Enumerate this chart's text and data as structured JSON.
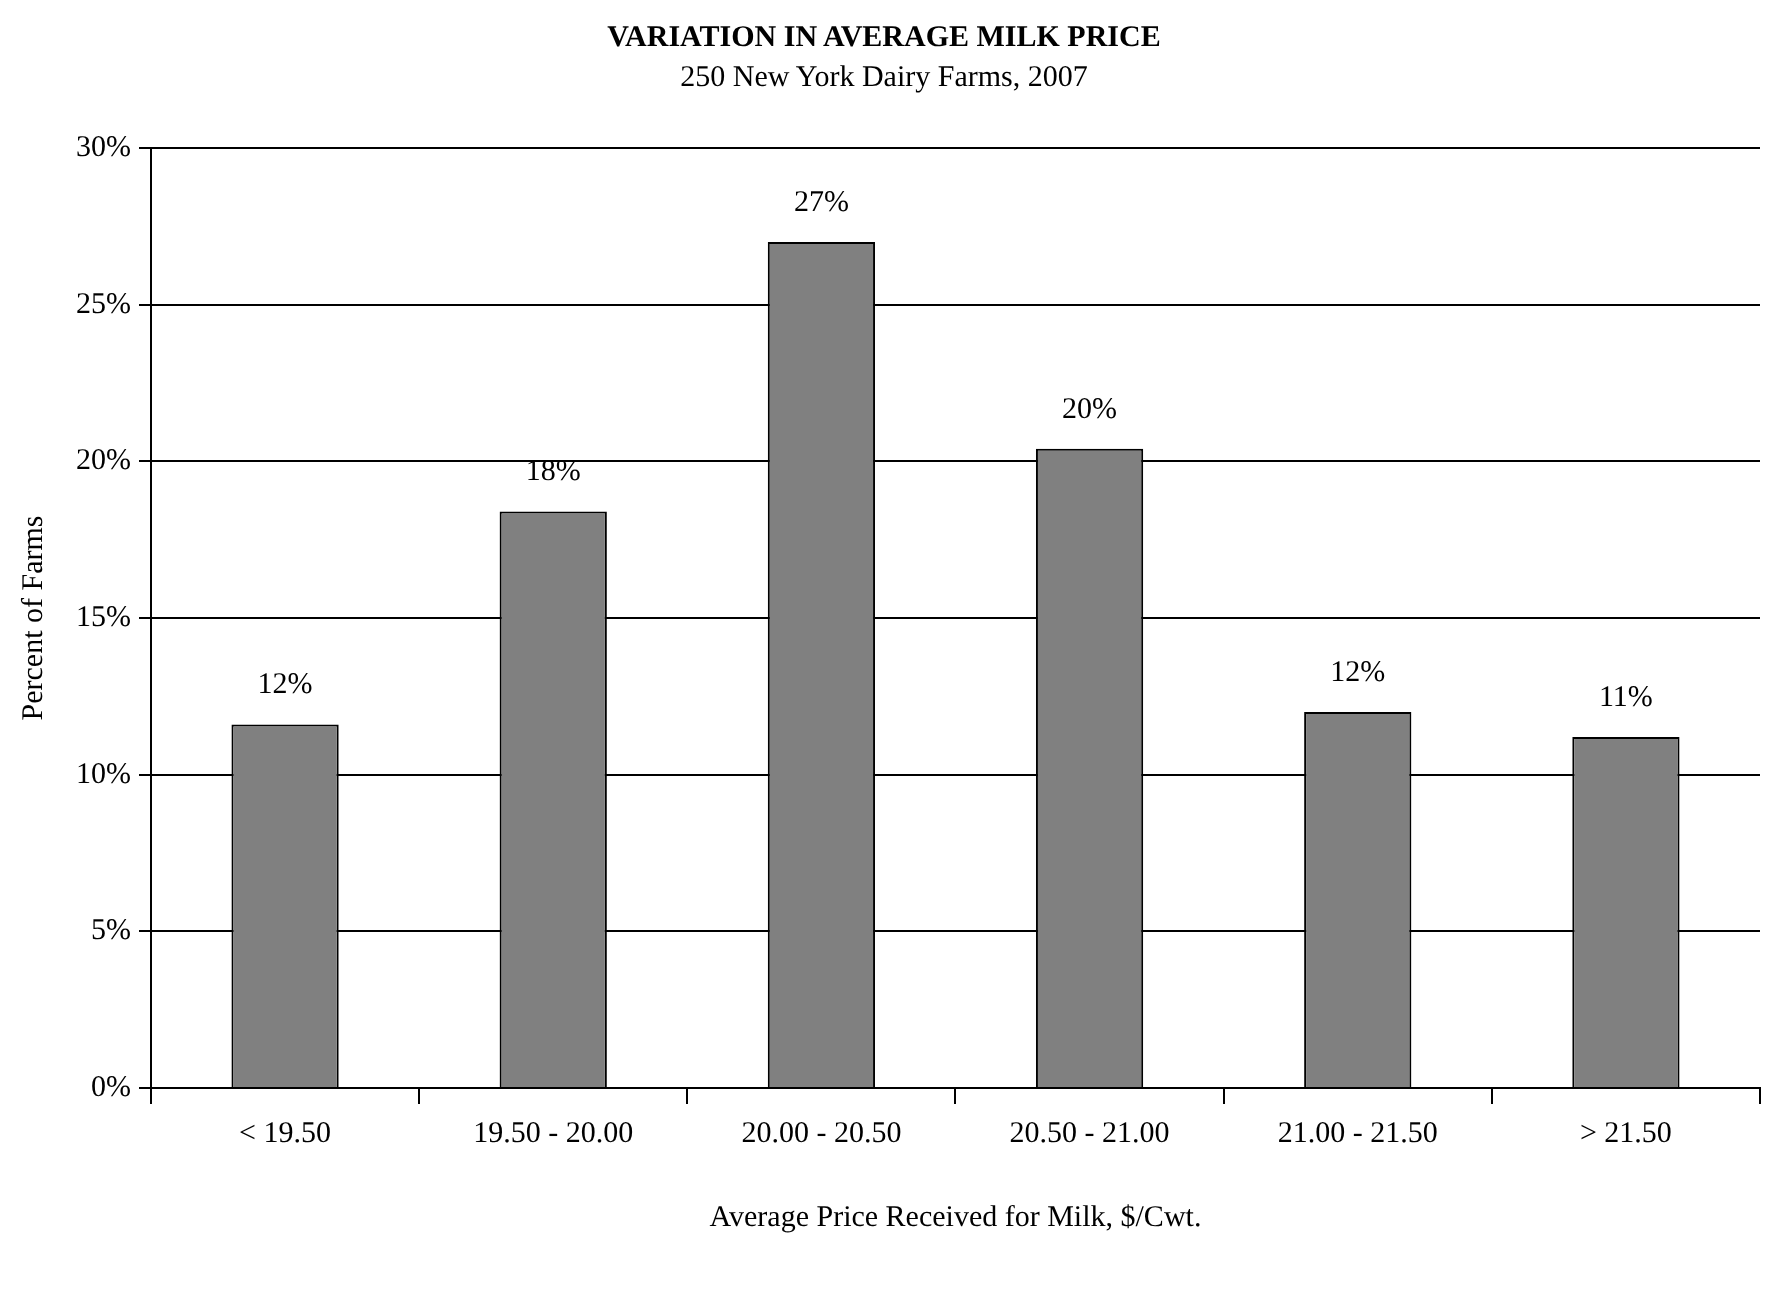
{
  "chart_data": {
    "type": "bar",
    "title": "VARIATION IN AVERAGE MILK PRICE",
    "subtitle": "250 New York Dairy Farms, 2007",
    "xlabel": "Average Price Received for Milk, $/Cwt.",
    "ylabel": "Percent of Farms",
    "categories": [
      "< 19.50",
      "19.50 - 20.00",
      "20.00 - 20.50",
      "20.50 - 21.00",
      "21.00 - 21.50",
      "> 21.50"
    ],
    "values": [
      11.6,
      18.4,
      27.0,
      20.4,
      12.0,
      11.2
    ],
    "value_labels": [
      "12%",
      "18%",
      "27%",
      "20%",
      "12%",
      "11%"
    ],
    "color": "#808080",
    "ylim": [
      0,
      30
    ],
    "yticks": [
      {
        "value": 0,
        "label": "0%"
      },
      {
        "value": 5,
        "label": "5%"
      },
      {
        "value": 10,
        "label": "10%"
      },
      {
        "value": 15,
        "label": "15%"
      },
      {
        "value": 20,
        "label": "20%"
      },
      {
        "value": 25,
        "label": "25%"
      },
      {
        "value": 30,
        "label": "30%"
      }
    ],
    "grid": "y",
    "legend": false
  }
}
